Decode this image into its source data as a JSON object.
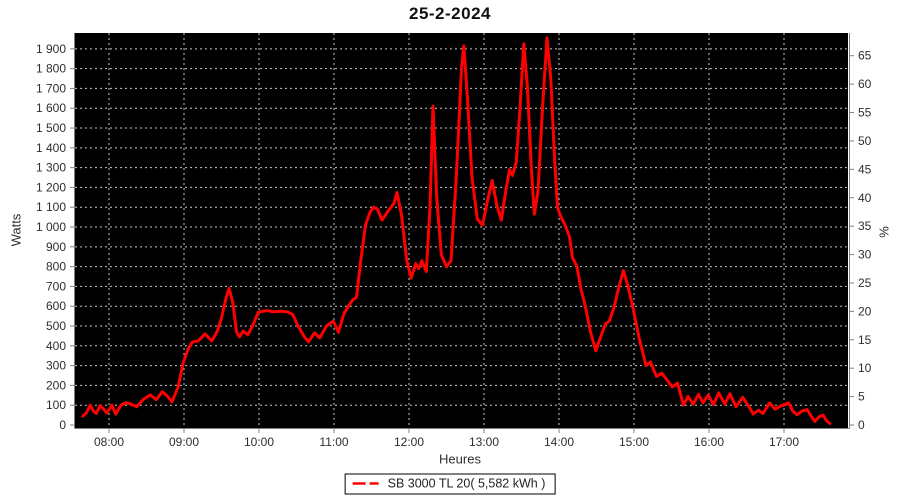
{
  "chart_data": {
    "type": "line",
    "title": "25-2-2024",
    "xlabel": "Heures",
    "ylabel_left": "Watts",
    "ylabel_right": "%",
    "plot_bg": "#000000",
    "grid_color": "#c8c8c8",
    "axis_color": "#808080",
    "tick_label_color": "#2e2e2e",
    "grid_on": true,
    "legend_position": "bottom-center",
    "x_tick_hours": [
      8,
      9,
      10,
      11,
      12,
      13,
      14,
      15,
      16,
      17
    ],
    "x_tick_labels": [
      "08:00",
      "09:00",
      "10:00",
      "11:00",
      "12:00",
      "13:00",
      "14:00",
      "15:00",
      "16:00",
      "17:00"
    ],
    "x_range_hours": [
      7.55,
      17.85
    ],
    "ylim_left": [
      0,
      1980
    ],
    "y_left_tick_values": [
      0,
      100,
      200,
      300,
      400,
      500,
      600,
      700,
      800,
      900,
      1000,
      1100,
      1200,
      1300,
      1400,
      1500,
      1600,
      1700,
      1800,
      1900
    ],
    "y_left_tick_labels": [
      "0",
      "100",
      "200",
      "300",
      "400",
      "500",
      "600",
      "700",
      "800",
      "900",
      "1 000",
      "1 100",
      "1 200",
      "1 300",
      "1 400",
      "1 500",
      "1 600",
      "1 700",
      "1 800",
      "1 900"
    ],
    "ylim_right": [
      0,
      69
    ],
    "y_right_tick_values": [
      0,
      5,
      10,
      15,
      20,
      25,
      30,
      35,
      40,
      45,
      50,
      55,
      60,
      65
    ],
    "y_right_tick_labels": [
      "0",
      "5",
      "10",
      "15",
      "20",
      "25",
      "30",
      "35",
      "40",
      "45",
      "50",
      "55",
      "60",
      "65"
    ],
    "legend": {
      "label": "SB 3000 TL 20( 5,582 kWh )"
    },
    "series": [
      {
        "name": "SB 3000 TL 20( 5,582 kWh )",
        "color": "#ff0000",
        "line_width": 3,
        "points": [
          [
            7.65,
            45
          ],
          [
            7.7,
            62
          ],
          [
            7.75,
            100
          ],
          [
            7.79,
            72
          ],
          [
            7.83,
            58
          ],
          [
            7.88,
            98
          ],
          [
            7.93,
            80
          ],
          [
            7.97,
            60
          ],
          [
            8.04,
            100
          ],
          [
            8.09,
            55
          ],
          [
            8.16,
            100
          ],
          [
            8.22,
            112
          ],
          [
            8.28,
            108
          ],
          [
            8.37,
            92
          ],
          [
            8.46,
            130
          ],
          [
            8.55,
            152
          ],
          [
            8.63,
            128
          ],
          [
            8.71,
            168
          ],
          [
            8.78,
            145
          ],
          [
            8.84,
            118
          ],
          [
            8.92,
            190
          ],
          [
            8.99,
            315
          ],
          [
            9.05,
            380
          ],
          [
            9.11,
            418
          ],
          [
            9.19,
            425
          ],
          [
            9.28,
            460
          ],
          [
            9.37,
            425
          ],
          [
            9.44,
            470
          ],
          [
            9.5,
            540
          ],
          [
            9.56,
            640
          ],
          [
            9.6,
            690
          ],
          [
            9.65,
            620
          ],
          [
            9.7,
            470
          ],
          [
            9.74,
            445
          ],
          [
            9.79,
            475
          ],
          [
            9.85,
            455
          ],
          [
            9.92,
            505
          ],
          [
            9.99,
            570
          ],
          [
            10.1,
            578
          ],
          [
            10.2,
            572
          ],
          [
            10.3,
            575
          ],
          [
            10.39,
            570
          ],
          [
            10.45,
            558
          ],
          [
            10.52,
            500
          ],
          [
            10.6,
            448
          ],
          [
            10.66,
            420
          ],
          [
            10.74,
            465
          ],
          [
            10.81,
            440
          ],
          [
            10.9,
            500
          ],
          [
            10.99,
            525
          ],
          [
            11.06,
            468
          ],
          [
            11.13,
            560
          ],
          [
            11.19,
            600
          ],
          [
            11.25,
            632
          ],
          [
            11.3,
            645
          ],
          [
            11.36,
            840
          ],
          [
            11.42,
            1010
          ],
          [
            11.48,
            1075
          ],
          [
            11.53,
            1100
          ],
          [
            11.58,
            1090
          ],
          [
            11.64,
            1035
          ],
          [
            11.72,
            1080
          ],
          [
            11.8,
            1120
          ],
          [
            11.84,
            1175
          ],
          [
            11.9,
            1060
          ],
          [
            11.97,
            830
          ],
          [
            12.03,
            742
          ],
          [
            12.09,
            815
          ],
          [
            12.13,
            790
          ],
          [
            12.17,
            830
          ],
          [
            12.23,
            775
          ],
          [
            12.28,
            1100
          ],
          [
            12.32,
            1610
          ],
          [
            12.37,
            1150
          ],
          [
            12.43,
            860
          ],
          [
            12.5,
            800
          ],
          [
            12.56,
            830
          ],
          [
            12.63,
            1250
          ],
          [
            12.7,
            1800
          ],
          [
            12.73,
            1915
          ],
          [
            12.78,
            1650
          ],
          [
            12.84,
            1250
          ],
          [
            12.91,
            1040
          ],
          [
            12.98,
            1010
          ],
          [
            13.05,
            1140
          ],
          [
            13.11,
            1235
          ],
          [
            13.17,
            1110
          ],
          [
            13.23,
            1035
          ],
          [
            13.29,
            1180
          ],
          [
            13.34,
            1290
          ],
          [
            13.38,
            1260
          ],
          [
            13.43,
            1330
          ],
          [
            13.48,
            1600
          ],
          [
            13.53,
            1925
          ],
          [
            13.58,
            1700
          ],
          [
            13.63,
            1300
          ],
          [
            13.67,
            1065
          ],
          [
            13.72,
            1180
          ],
          [
            13.78,
            1600
          ],
          [
            13.84,
            1955
          ],
          [
            13.89,
            1750
          ],
          [
            13.94,
            1350
          ],
          [
            13.98,
            1100
          ],
          [
            14.02,
            1055
          ],
          [
            14.08,
            1010
          ],
          [
            14.14,
            950
          ],
          [
            14.18,
            845
          ],
          [
            14.24,
            800
          ],
          [
            14.29,
            690
          ],
          [
            14.35,
            600
          ],
          [
            14.42,
            470
          ],
          [
            14.49,
            375
          ],
          [
            14.56,
            450
          ],
          [
            14.62,
            510
          ],
          [
            14.67,
            525
          ],
          [
            14.73,
            590
          ],
          [
            14.8,
            700
          ],
          [
            14.86,
            780
          ],
          [
            14.92,
            700
          ],
          [
            14.99,
            585
          ],
          [
            15.07,
            435
          ],
          [
            15.16,
            300
          ],
          [
            15.22,
            318
          ],
          [
            15.3,
            245
          ],
          [
            15.37,
            262
          ],
          [
            15.44,
            228
          ],
          [
            15.51,
            192
          ],
          [
            15.58,
            212
          ],
          [
            15.66,
            100
          ],
          [
            15.72,
            145
          ],
          [
            15.79,
            105
          ],
          [
            15.86,
            155
          ],
          [
            15.92,
            112
          ],
          [
            15.99,
            152
          ],
          [
            16.06,
            102
          ],
          [
            16.13,
            162
          ],
          [
            16.21,
            106
          ],
          [
            16.28,
            158
          ],
          [
            16.36,
            92
          ],
          [
            16.45,
            140
          ],
          [
            16.52,
            100
          ],
          [
            16.59,
            55
          ],
          [
            16.66,
            75
          ],
          [
            16.72,
            58
          ],
          [
            16.81,
            112
          ],
          [
            16.88,
            80
          ],
          [
            16.95,
            95
          ],
          [
            17.0,
            102
          ],
          [
            17.06,
            112
          ],
          [
            17.12,
            70
          ],
          [
            17.17,
            52
          ],
          [
            17.24,
            70
          ],
          [
            17.31,
            78
          ],
          [
            17.37,
            40
          ],
          [
            17.41,
            18
          ],
          [
            17.47,
            42
          ],
          [
            17.52,
            50
          ],
          [
            17.57,
            20
          ],
          [
            17.61,
            8
          ]
        ]
      }
    ]
  }
}
